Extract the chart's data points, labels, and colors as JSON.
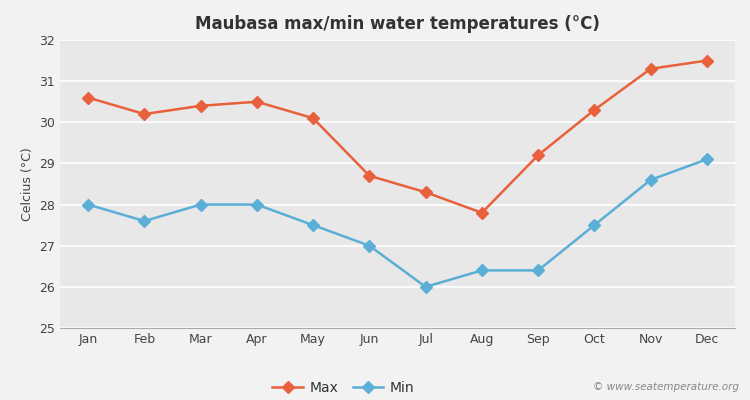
{
  "title": "Maubasa max/min water temperatures (°C)",
  "ylabel": "Celcius (°C)",
  "months": [
    "Jan",
    "Feb",
    "Mar",
    "Apr",
    "May",
    "Jun",
    "Jul",
    "Aug",
    "Sep",
    "Oct",
    "Nov",
    "Dec"
  ],
  "max_temps": [
    30.6,
    30.2,
    30.4,
    30.5,
    30.1,
    28.7,
    28.3,
    27.8,
    29.2,
    30.3,
    31.3,
    31.5
  ],
  "min_temps": [
    28.0,
    27.6,
    28.0,
    28.0,
    27.5,
    27.0,
    26.0,
    26.4,
    26.4,
    27.5,
    28.6,
    29.1
  ],
  "max_color": "#e8603c",
  "min_color": "#5bafd6",
  "bg_color": "#f2f2f2",
  "plot_bg_color": "#e8e8e8",
  "grid_color": "#ffffff",
  "ylim": [
    25,
    32
  ],
  "yticks": [
    25,
    26,
    27,
    28,
    29,
    30,
    31,
    32
  ],
  "legend_labels": [
    "Max",
    "Min"
  ],
  "watermark": "© www.seatemperature.org",
  "title_fontsize": 12,
  "label_fontsize": 9,
  "tick_fontsize": 9,
  "legend_fontsize": 10,
  "marker": "D",
  "linewidth": 1.8,
  "markersize": 6
}
